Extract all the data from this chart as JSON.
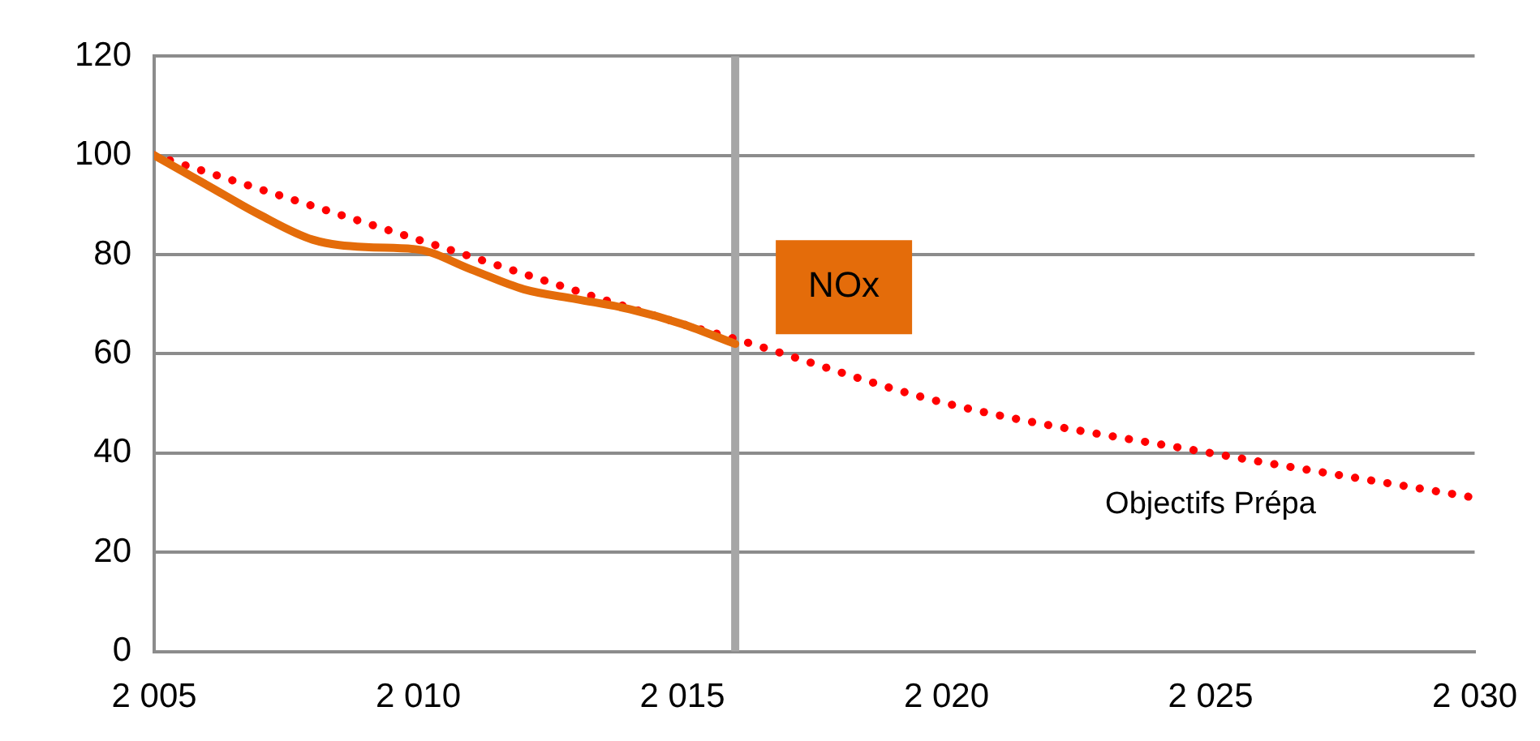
{
  "chart_data": {
    "type": "line",
    "xlim": [
      2005,
      2030
    ],
    "xticks": [
      {
        "value": 2005,
        "label": "2 005"
      },
      {
        "value": 2010,
        "label": "2 010"
      },
      {
        "value": 2015,
        "label": "2 015"
      },
      {
        "value": 2020,
        "label": "2 020"
      },
      {
        "value": 2025,
        "label": "2 025"
      },
      {
        "value": 2030,
        "label": "2 030"
      }
    ],
    "ylim": [
      0,
      120
    ],
    "yticks": [
      0,
      20,
      40,
      60,
      80,
      100,
      120
    ],
    "grid": "y",
    "legend": false,
    "marker": "none",
    "series": [
      {
        "name": "NOx",
        "color": "#e46c0a",
        "line_style": "solid",
        "x": [
          2005,
          2006,
          2007,
          2008,
          2009,
          2010,
          2011,
          2012,
          2013,
          2014,
          2015,
          2016
        ],
        "values": [
          100,
          94,
          88,
          83,
          81.5,
          81,
          77,
          73,
          71,
          69,
          66,
          62
        ]
      },
      {
        "name": "Objectifs Prépa",
        "color": "#ff0000",
        "line_style": "dotted",
        "x": [
          2005,
          2010,
          2015,
          2016,
          2020,
          2025,
          2030
        ],
        "values": [
          100,
          83,
          66,
          63,
          50,
          40,
          31
        ]
      }
    ],
    "ref_lines": [
      {
        "axis": "x",
        "value": 2016,
        "color": "#a6a6a6",
        "line_style": "solid"
      }
    ]
  }
}
